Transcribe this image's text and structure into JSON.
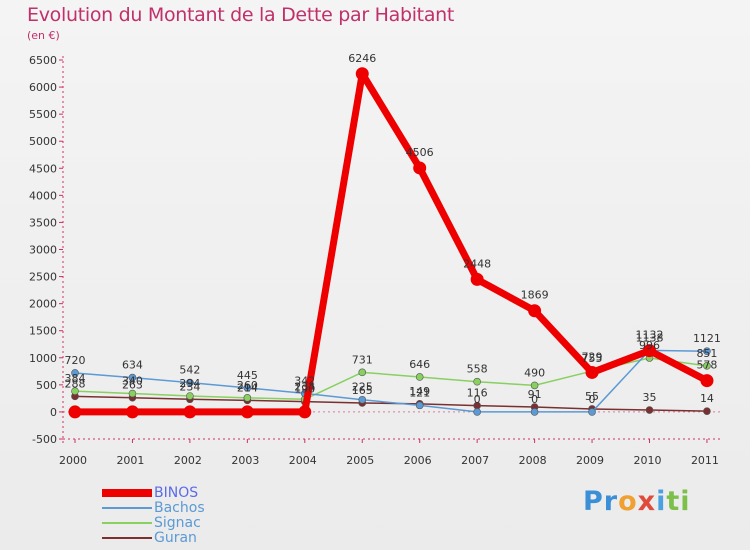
{
  "chart_data": {
    "type": "line",
    "title": "Evolution du Montant de la Dette par Habitant",
    "subtitle": "(en €)",
    "xlabel": "",
    "ylabel": "",
    "categories": [
      "2000",
      "2001",
      "2002",
      "2003",
      "2004",
      "2005",
      "2006",
      "2007",
      "2008",
      "2009",
      "2010",
      "2011"
    ],
    "y_ticks": [
      -500,
      0,
      500,
      1000,
      1500,
      2000,
      2500,
      3000,
      3500,
      4000,
      4500,
      5000,
      5500,
      6000,
      6500
    ],
    "ylim": [
      -500,
      6500
    ],
    "grid": false,
    "legend_position": "bottom-left",
    "series": [
      {
        "name": "BINOS",
        "color": "#ee0000",
        "emphasis": true,
        "values": [
          0,
          0,
          0,
          0,
          0,
          6246,
          4506,
          2448,
          1869,
          729,
          1132,
          578
        ],
        "labels": [
          "",
          "",
          "",
          "",
          "",
          "6246",
          "4506",
          "2448",
          "1869",
          "729",
          "1132",
          "578"
        ]
      },
      {
        "name": "Bachos",
        "color": "#5b9ad5",
        "emphasis": false,
        "values": [
          720,
          634,
          542,
          445,
          342,
          225,
          121,
          0,
          0,
          0,
          1138,
          1121
        ],
        "labels": [
          "720",
          "634",
          "542",
          "445",
          "342",
          "225",
          "121",
          "0",
          "0",
          "0",
          "1138",
          "1121"
        ]
      },
      {
        "name": "Signac",
        "color": "#88d060",
        "emphasis": false,
        "values": [
          384,
          340,
          294,
          260,
          234,
          731,
          646,
          558,
          490,
          755,
          996,
          851
        ],
        "labels": [
          "384",
          "340",
          "294",
          "260",
          "234",
          "731",
          "646",
          "558",
          "490",
          "755",
          "996",
          "851"
        ]
      },
      {
        "name": "Guran",
        "color": "#7a3030",
        "emphasis": false,
        "values": [
          288,
          263,
          234,
          214,
          190,
          165,
          149,
          116,
          91,
          55,
          35,
          14
        ],
        "labels": [
          "288",
          "263",
          "234",
          "214",
          "190",
          "165",
          "149",
          "116",
          "91",
          "55",
          "35",
          "14"
        ]
      }
    ]
  },
  "brand": {
    "parts": [
      "Pr",
      "o",
      "x",
      "i",
      "ti"
    ]
  }
}
